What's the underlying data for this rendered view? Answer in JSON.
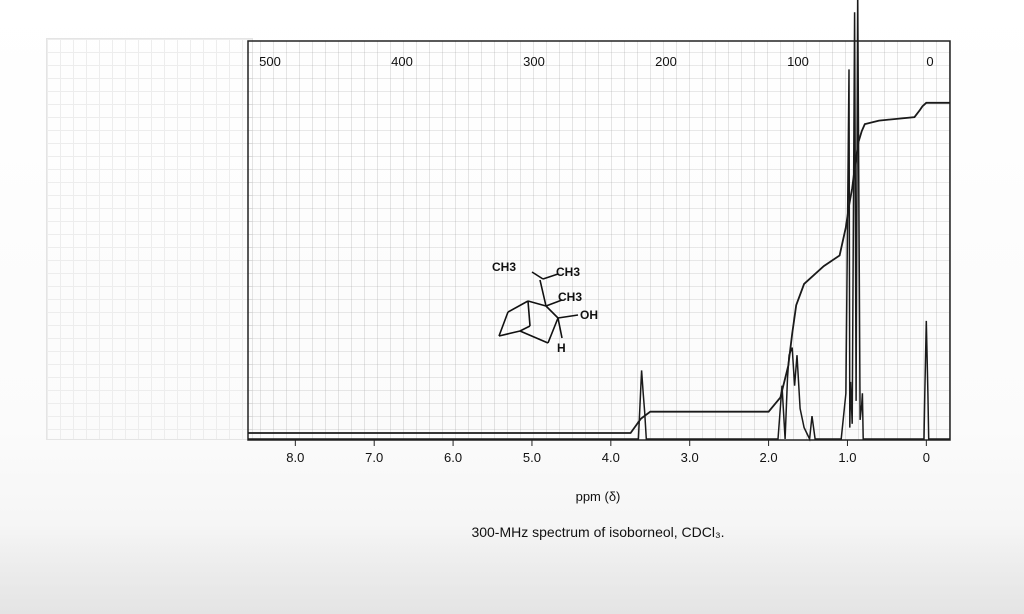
{
  "chart_data": {
    "type": "line",
    "title": "300-MHz spectrum of isoborneol, CDCl₃.",
    "xlabel": "ppm (δ)",
    "ylabel": "",
    "xlim": [
      8.6,
      -0.3
    ],
    "x_ticks": [
      "8.0",
      "7.0",
      "6.0",
      "5.0",
      "4.0",
      "3.0",
      "2.0",
      "1.0",
      "0"
    ],
    "x_tick_values": [
      8.0,
      7.0,
      6.0,
      5.0,
      4.0,
      3.0,
      2.0,
      1.0,
      0.0
    ],
    "integral_scale_ticks": [
      "500",
      "400",
      "300",
      "200",
      "100",
      "0"
    ],
    "integral_scale_values": [
      500,
      400,
      300,
      200,
      100,
      0
    ],
    "grid": true,
    "series": [
      {
        "role": "spectrum",
        "x": [
          8.6,
          3.65,
          3.63,
          3.61,
          3.59,
          3.57,
          3.55,
          1.88,
          1.83,
          1.79,
          1.76,
          1.74,
          1.7,
          1.67,
          1.64,
          1.6,
          1.55,
          1.48,
          1.45,
          1.41,
          1.35,
          1.08,
          1.02,
          0.98,
          0.97,
          0.96,
          0.94,
          0.91,
          0.89,
          0.87,
          0.84,
          0.82,
          0.81,
          0.8,
          0.78,
          0.75,
          0.55,
          0.03,
          0.02,
          0.0,
          -0.02,
          -0.03,
          -0.3
        ],
        "y": [
          0.0,
          0.0,
          0.09,
          0.18,
          0.12,
          0.07,
          0.0,
          0.0,
          0.14,
          0.0,
          0.16,
          0.22,
          0.24,
          0.14,
          0.22,
          0.08,
          0.03,
          0.0,
          0.06,
          0.0,
          0.0,
          0.0,
          0.12,
          0.97,
          0.03,
          0.15,
          0.04,
          1.12,
          0.1,
          1.18,
          0.05,
          0.09,
          0.12,
          0.0,
          0.0,
          0.0,
          0.0,
          0.0,
          0.12,
          0.31,
          0.12,
          0.0,
          0.0
        ]
      },
      {
        "role": "integral",
        "x": [
          8.6,
          3.75,
          3.62,
          3.5,
          2.0,
          1.85,
          1.75,
          1.7,
          1.65,
          1.55,
          1.3,
          1.1,
          1.02,
          0.98,
          0.94,
          0.9,
          0.86,
          0.82,
          0.78,
          0.6,
          0.15,
          0.08,
          0.05,
          0.0,
          -0.1,
          -0.3
        ],
        "y": [
          0.0,
          0.0,
          0.04,
          0.06,
          0.06,
          0.1,
          0.19,
          0.28,
          0.36,
          0.42,
          0.47,
          0.5,
          0.58,
          0.64,
          0.69,
          0.76,
          0.82,
          0.85,
          0.87,
          0.88,
          0.89,
          0.91,
          0.92,
          0.93,
          0.93,
          0.93
        ]
      }
    ]
  },
  "structure": {
    "labels": [
      "CH3",
      "CH3",
      "CH3",
      "OH",
      "H"
    ],
    "name": "isoborneol"
  },
  "colors": {
    "ink": "#1a1a1a",
    "grid": "#8e8e8e",
    "paper": "#ffffff"
  }
}
